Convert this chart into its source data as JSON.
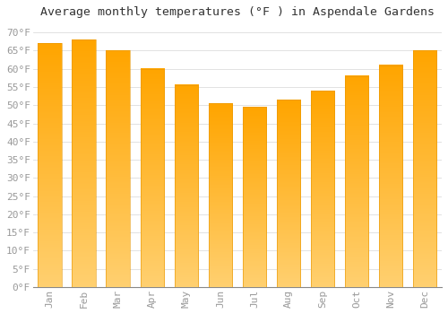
{
  "title": "Average monthly temperatures (°F ) in Aspendale Gardens",
  "months": [
    "Jan",
    "Feb",
    "Mar",
    "Apr",
    "May",
    "Jun",
    "Jul",
    "Aug",
    "Sep",
    "Oct",
    "Nov",
    "Dec"
  ],
  "values": [
    67.0,
    68.0,
    65.0,
    60.0,
    55.5,
    50.5,
    49.5,
    51.5,
    54.0,
    58.0,
    61.0,
    65.0
  ],
  "bar_color_top": "#FFA500",
  "bar_color_bottom": "#FFD080",
  "bar_edge_color": "#E69500",
  "background_color": "#FFFFFF",
  "grid_color": "#DDDDDD",
  "text_color": "#999999",
  "ylim": [
    0,
    72
  ],
  "yticks": [
    0,
    5,
    10,
    15,
    20,
    25,
    30,
    35,
    40,
    45,
    50,
    55,
    60,
    65,
    70
  ],
  "title_fontsize": 9.5,
  "tick_fontsize": 8,
  "font_family": "monospace"
}
